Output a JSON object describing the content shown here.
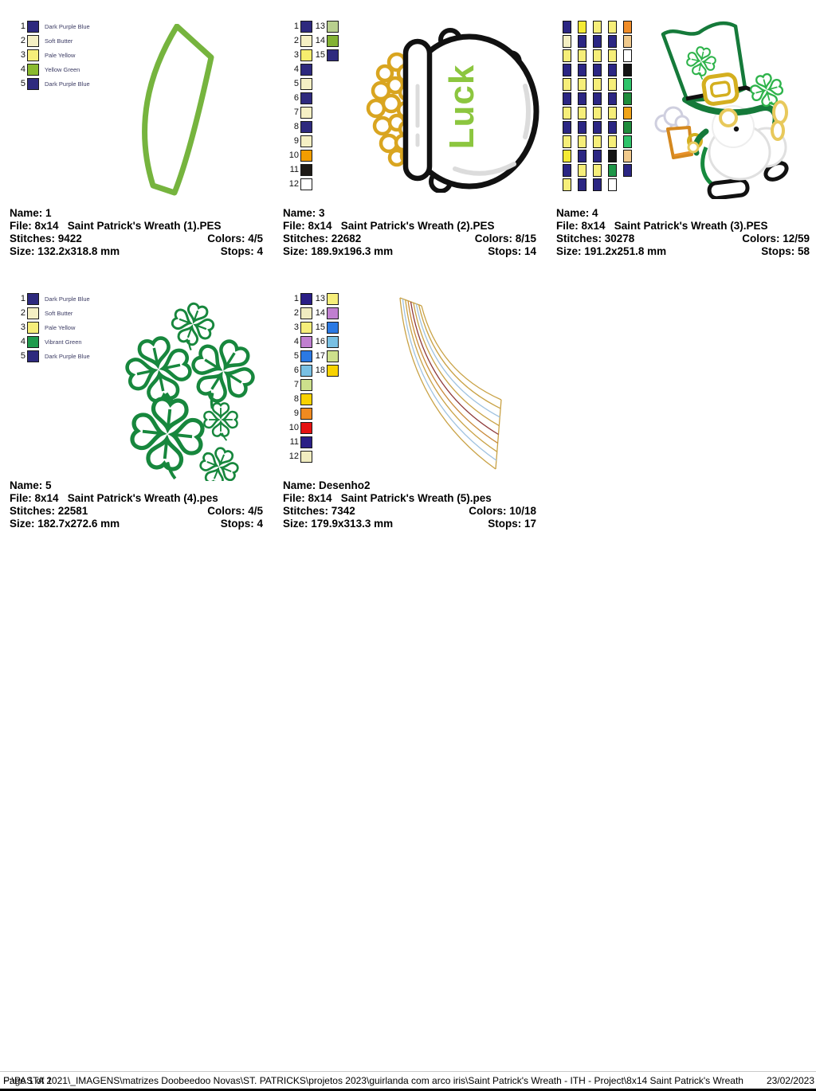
{
  "footer": {
    "page_label": "Page 1 of 1",
    "path": "F:\\PASTA 2021\\_IMAGENS\\matrizes Doobeedoo Novas\\ST. PATRICKS\\projetos 2023\\guirlanda com arco iris\\Saint Patrick's Wreath - ITH - Project\\8x14 Saint Patrick's Wreath",
    "date": "23/02/2023"
  },
  "colors": {
    "dark_purple_blue": "#2e2a7e",
    "soft_butter": "#f5f0c4",
    "pale_yellow": "#f6ee7a",
    "yellow_green": "#8aba2e",
    "vibrant_green": "#1f9b4d",
    "outline_green": "#178a3e",
    "gold": "#d9a520",
    "luck_green": "#8cc63f"
  },
  "designs": [
    {
      "name_label": "Name: 1",
      "file_label": "File: 8x14   Saint Patrick's Wreath (1).PES",
      "stitches_label": "Stitches: 9422",
      "colors_label": "Colors: 4/5",
      "size_label": "Size: 132.2x318.8 mm",
      "stops_label": "Stops: 4",
      "palette_columns": [
        [
          {
            "num": "1",
            "color": "#2e2a7e",
            "label": "Dark Purple Blue"
          },
          {
            "num": "2",
            "color": "#f5f0c4",
            "label": "Soft Butter"
          },
          {
            "num": "3",
            "color": "#f6ee7a",
            "label": "Pale Yellow"
          },
          {
            "num": "4",
            "color": "#8aba2e",
            "label": "Yellow Green"
          },
          {
            "num": "5",
            "color": "#2e2a7e",
            "label": "Dark Purple Blue"
          }
        ]
      ]
    },
    {
      "name_label": "Name: 3",
      "file_label": "File: 8x14   Saint Patrick's Wreath (2).PES",
      "stitches_label": "Stitches: 22682",
      "colors_label": "Colors: 8/15",
      "size_label": "Size: 189.9x196.3 mm",
      "stops_label": "Stops: 14",
      "palette_columns": [
        [
          {
            "num": "1",
            "color": "#2e2a7e"
          },
          {
            "num": "2",
            "color": "#f5f0c4"
          },
          {
            "num": "3",
            "color": "#f6ee6e"
          },
          {
            "num": "4",
            "color": "#2e2a7e"
          },
          {
            "num": "5",
            "color": "#f5f0c4"
          },
          {
            "num": "6",
            "color": "#2e2a7e"
          },
          {
            "num": "7",
            "color": "#f5f0c4"
          },
          {
            "num": "8",
            "color": "#2e2a7e"
          },
          {
            "num": "9",
            "color": "#f5f0c4"
          },
          {
            "num": "10",
            "color": "#f29d00"
          },
          {
            "num": "11",
            "color": "#1e1b17"
          },
          {
            "num": "12",
            "color": "#ffffff"
          }
        ],
        [
          {
            "num": "13",
            "color": "#b8cf8e"
          },
          {
            "num": "14",
            "color": "#83b233"
          },
          {
            "num": "15",
            "color": "#2e2a7e"
          }
        ]
      ]
    },
    {
      "name_label": "Name: 4",
      "file_label": "File: 8x14   Saint Patrick's Wreath (3).PES",
      "stitches_label": "Stitches: 30278",
      "colors_label": "Colors: 12/59",
      "size_label": "Size: 191.2x251.8 mm",
      "stops_label": "Stops: 58",
      "swatch_grid_columns": [
        [
          "#2b2683",
          "#f4efc3",
          "#f6ee79",
          "#2b2683",
          "#f6ee79",
          "#2b2683",
          "#f6ee79",
          "#2b2683",
          "#f6ee79",
          "#f4ea33",
          "#2b2683",
          "#f6ee79"
        ],
        [
          "#f4ea33",
          "#2b2683",
          "#f6ee79",
          "#2b2683",
          "#f6ee79",
          "#2b2683",
          "#f6ee79",
          "#2b2683",
          "#f6ee79",
          "#2b2683",
          "#f6ee79",
          "#2b2683"
        ],
        [
          "#f6ee79",
          "#2b2683",
          "#f6ee79",
          "#2b2683",
          "#f6ee79",
          "#2b2683",
          "#f6ee79",
          "#2b2683",
          "#f6ee79",
          "#2b2683",
          "#f6ee79",
          "#2b2683"
        ],
        [
          "#f6ee79",
          "#2b2683",
          "#f6ee79",
          "#2b2683",
          "#f6ee79",
          "#2b2683",
          "#f6ee79",
          "#2b2683",
          "#f6ee79",
          "#141414",
          "#1e9648",
          "#ffffff"
        ],
        [
          "#f08c28",
          "#f0c98c",
          "#ffffff",
          "#141414",
          "#2ec46a",
          "#1e8c3c",
          "#f0a418",
          "#1e8c3c",
          "#2ec46a",
          "#f0c98c",
          "#2b2683"
        ]
      ]
    },
    {
      "name_label": "Name: 5",
      "file_label": "File: 8x14   Saint Patrick's Wreath (4).pes",
      "stitches_label": "Stitches: 22581",
      "colors_label": "Colors: 4/5",
      "size_label": "Size: 182.7x272.6 mm",
      "stops_label": "Stops: 4",
      "palette_columns": [
        [
          {
            "num": "1",
            "color": "#2e2a7e",
            "label": "Dark Purple Blue"
          },
          {
            "num": "2",
            "color": "#f5f0c4",
            "label": "Soft Butter"
          },
          {
            "num": "3",
            "color": "#f6ee7a",
            "label": "Pale Yellow"
          },
          {
            "num": "4",
            "color": "#1f9b4d",
            "label": "Vibrant Green"
          },
          {
            "num": "5",
            "color": "#2e2a7e",
            "label": "Dark Purple Blue"
          }
        ]
      ]
    },
    {
      "name_label": "Name: Desenho2",
      "file_label": "File: 8x14   Saint Patrick's Wreath (5).pes",
      "stitches_label": "Stitches: 7342",
      "colors_label": "Colors: 10/18",
      "size_label": "Size: 179.9x313.3 mm",
      "stops_label": "Stops: 17",
      "palette_columns": [
        [
          {
            "num": "1",
            "color": "#2a1f86"
          },
          {
            "num": "2",
            "color": "#f0ecc0"
          },
          {
            "num": "3",
            "color": "#f6ee7a"
          },
          {
            "num": "4",
            "color": "#c07fd0"
          },
          {
            "num": "5",
            "color": "#2b79e3"
          },
          {
            "num": "6",
            "color": "#79c0e3"
          },
          {
            "num": "7",
            "color": "#cde08c"
          },
          {
            "num": "8",
            "color": "#f8d200"
          },
          {
            "num": "9",
            "color": "#f08a20"
          },
          {
            "num": "10",
            "color": "#e51212"
          },
          {
            "num": "11",
            "color": "#2a1f86"
          },
          {
            "num": "12",
            "color": "#f0ecc0"
          }
        ],
        [
          {
            "num": "13",
            "color": "#f6ee7a"
          },
          {
            "num": "14",
            "color": "#c07fd0"
          },
          {
            "num": "15",
            "color": "#2b79e3"
          },
          {
            "num": "16",
            "color": "#79c0e3"
          },
          {
            "num": "17",
            "color": "#cde08c"
          },
          {
            "num": "18",
            "color": "#f8d200"
          }
        ]
      ]
    }
  ]
}
